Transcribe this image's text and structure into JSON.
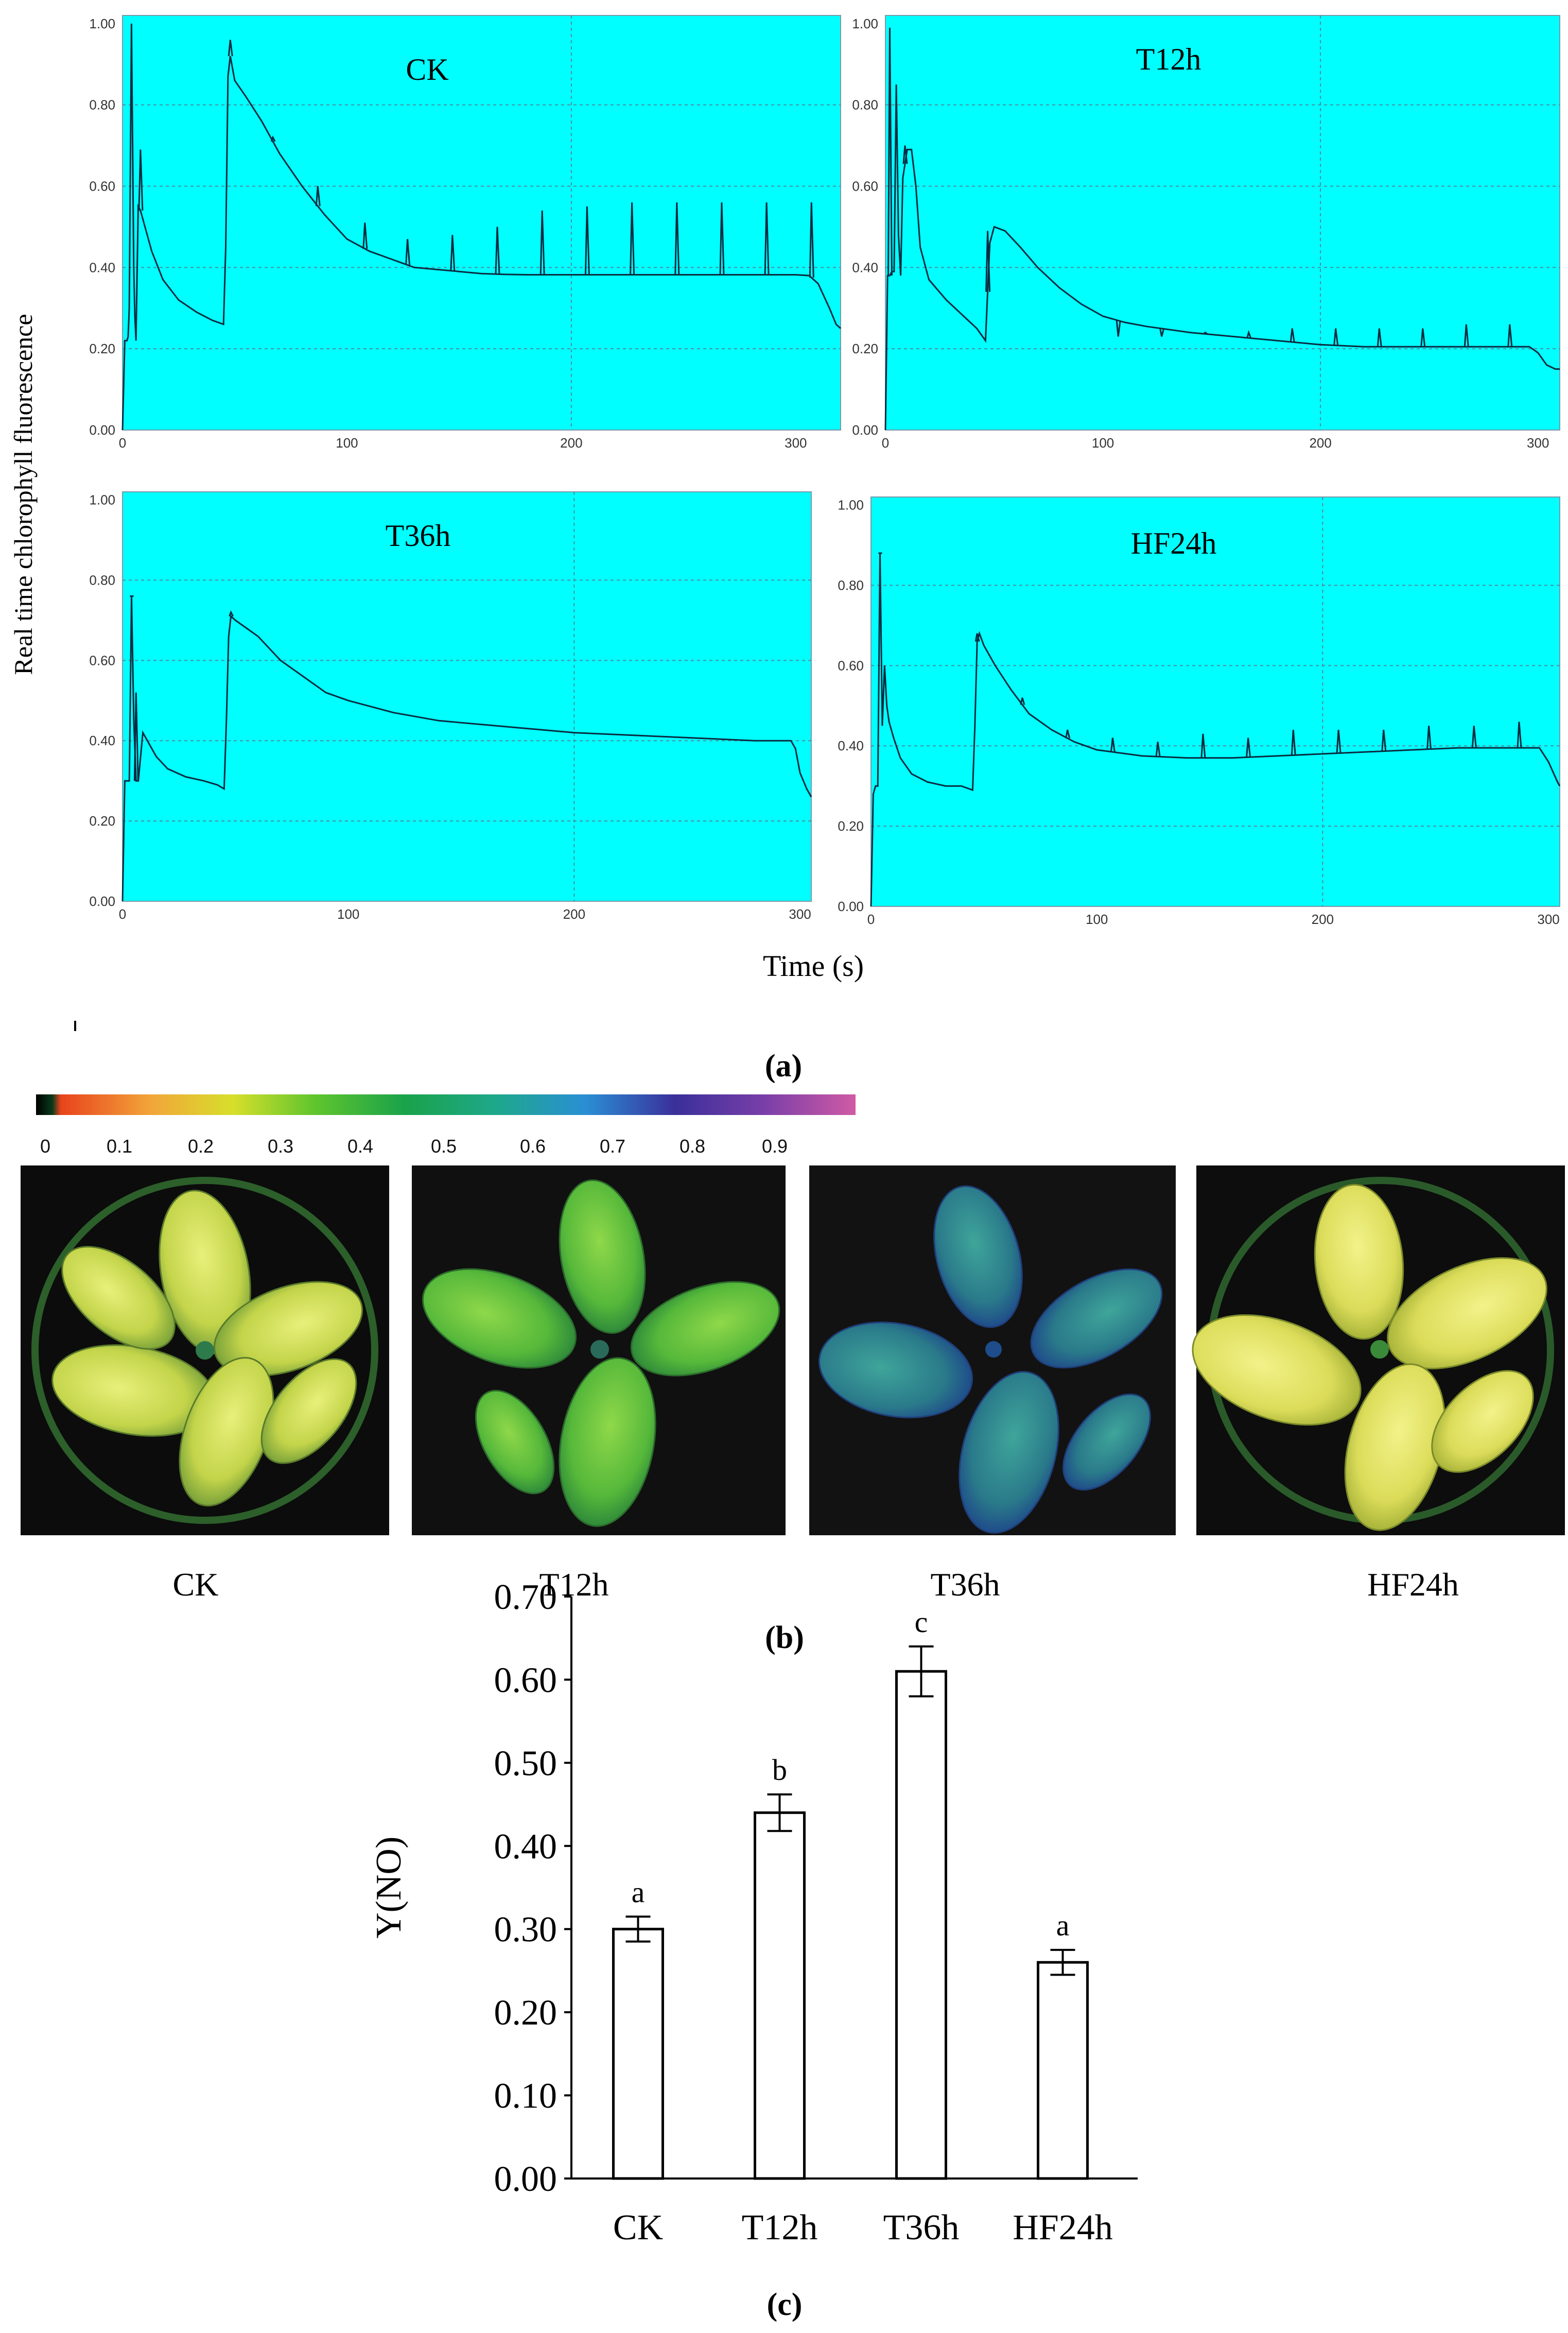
{
  "figure": {
    "ylabel_a": "Real time chlorophyll fluorescence",
    "xlabel_a": "Time (s)",
    "label_a": "(a)",
    "label_b": "(b)",
    "label_c": "(c)",
    "colorbar": {
      "ticks": [
        "0",
        "0.1",
        "0.2",
        "0.3",
        "0.4",
        "0.5",
        "0.6",
        "0.7",
        "0.8",
        "0.9"
      ],
      "colors": [
        "#000000",
        "#e8431c",
        "#f2a53a",
        "#d7df2b",
        "#5fc52d",
        "#1aa24a",
        "#1ea88a",
        "#2a8fd4",
        "#3a2f9a",
        "#7a3fa8",
        "#c858a8"
      ]
    },
    "plant_images": [
      {
        "name": "CK",
        "tone": "bright-yellow-green"
      },
      {
        "name": "T12h",
        "tone": "green"
      },
      {
        "name": "T36h",
        "tone": "blue-green"
      },
      {
        "name": "HF24h",
        "tone": "bright-yellow"
      }
    ],
    "colors": {
      "panel_bg": "#00ffff",
      "trace": "#0a2b40",
      "grid": "#4a8fa0",
      "bar_edge": "#000000"
    }
  },
  "chart_data": [
    {
      "type": "line",
      "title": "CK",
      "yticks": [
        "0.00",
        "0.20",
        "0.40",
        "0.60",
        "0.80",
        "1.00"
      ],
      "xticks": [
        "0",
        "100",
        "200",
        "300"
      ],
      "xlim": [
        0,
        320
      ],
      "ylim": [
        0,
        1.02
      ],
      "x": [
        0,
        1,
        2,
        2.5,
        3,
        4,
        5,
        5.5,
        6,
        7,
        8,
        10,
        13,
        18,
        25,
        33,
        40,
        45,
        46,
        47,
        48,
        50,
        55,
        62,
        70,
        80,
        90,
        100,
        110,
        120,
        130,
        140,
        150,
        160,
        170,
        180,
        200,
        220,
        240,
        260,
        280,
        300,
        306,
        310,
        315,
        318,
        320
      ],
      "y": [
        0.0,
        0.22,
        0.22,
        0.23,
        0.3,
        1.0,
        0.4,
        0.28,
        0.22,
        0.55,
        0.54,
        0.5,
        0.44,
        0.37,
        0.32,
        0.29,
        0.27,
        0.26,
        0.45,
        0.87,
        0.92,
        0.86,
        0.82,
        0.76,
        0.68,
        0.6,
        0.53,
        0.47,
        0.44,
        0.42,
        0.4,
        0.395,
        0.39,
        0.385,
        0.383,
        0.382,
        0.382,
        0.382,
        0.382,
        0.382,
        0.382,
        0.382,
        0.38,
        0.36,
        0.3,
        0.26,
        0.25
      ],
      "spikes": [
        [
          8,
          0.69
        ],
        [
          48,
          0.96
        ],
        [
          67,
          0.72
        ],
        [
          87,
          0.6
        ],
        [
          108,
          0.51
        ],
        [
          127,
          0.47
        ],
        [
          147,
          0.48
        ],
        [
          167,
          0.5
        ],
        [
          187,
          0.54
        ],
        [
          207,
          0.55
        ],
        [
          227,
          0.56
        ],
        [
          247,
          0.56
        ],
        [
          267,
          0.56
        ],
        [
          287,
          0.56
        ],
        [
          307,
          0.56
        ]
      ]
    },
    {
      "type": "line",
      "title": "T12h",
      "yticks": [
        "0.00",
        "0.20",
        "0.40",
        "0.60",
        "0.80",
        "1.00"
      ],
      "xticks": [
        "0",
        "100",
        "200",
        "300"
      ],
      "xlim": [
        0,
        310
      ],
      "ylim": [
        0,
        1.02
      ],
      "x": [
        0,
        1,
        2,
        3,
        4,
        5,
        6,
        7,
        8,
        10,
        12,
        14,
        16,
        20,
        28,
        36,
        42,
        46,
        47,
        48,
        50,
        55,
        62,
        70,
        80,
        90,
        100,
        110,
        120,
        140,
        160,
        180,
        200,
        220,
        240,
        260,
        280,
        296,
        300,
        304,
        308,
        310
      ],
      "y": [
        0.0,
        0.38,
        0.38,
        0.39,
        0.39,
        0.85,
        0.48,
        0.38,
        0.62,
        0.69,
        0.69,
        0.6,
        0.45,
        0.37,
        0.32,
        0.28,
        0.25,
        0.22,
        0.34,
        0.46,
        0.5,
        0.49,
        0.45,
        0.4,
        0.35,
        0.31,
        0.28,
        0.265,
        0.255,
        0.24,
        0.23,
        0.22,
        0.21,
        0.205,
        0.205,
        0.205,
        0.205,
        0.205,
        0.19,
        0.16,
        0.15,
        0.15
      ],
      "spikes": [
        [
          2,
          0.99
        ],
        [
          9,
          0.7
        ],
        [
          47,
          0.49
        ],
        [
          107,
          0.23
        ],
        [
          127,
          0.23
        ],
        [
          147,
          0.24
        ],
        [
          167,
          0.24
        ],
        [
          187,
          0.25
        ],
        [
          207,
          0.25
        ],
        [
          227,
          0.25
        ],
        [
          247,
          0.25
        ],
        [
          267,
          0.26
        ],
        [
          287,
          0.26
        ]
      ]
    },
    {
      "type": "line",
      "title": "T36h",
      "yticks": [
        "0.00",
        "0.20",
        "0.40",
        "0.60",
        "0.80",
        "1.00"
      ],
      "xticks": [
        "0",
        "100",
        "200",
        "300"
      ],
      "xlim": [
        0,
        305
      ],
      "ylim": [
        0,
        1.02
      ],
      "x": [
        0,
        1,
        2,
        3,
        4,
        5,
        6,
        7,
        8,
        9,
        10,
        12,
        15,
        20,
        28,
        36,
        42,
        45,
        46,
        47,
        48,
        50,
        55,
        60,
        70,
        80,
        90,
        100,
        120,
        140,
        160,
        180,
        200,
        220,
        240,
        260,
        280,
        296,
        298,
        300,
        303,
        305
      ],
      "y": [
        0.0,
        0.3,
        0.3,
        0.3,
        0.76,
        0.45,
        0.3,
        0.3,
        0.36,
        0.42,
        0.41,
        0.39,
        0.36,
        0.33,
        0.31,
        0.3,
        0.29,
        0.28,
        0.45,
        0.66,
        0.71,
        0.7,
        0.68,
        0.66,
        0.6,
        0.56,
        0.52,
        0.5,
        0.47,
        0.45,
        0.44,
        0.43,
        0.42,
        0.415,
        0.41,
        0.405,
        0.4,
        0.4,
        0.38,
        0.32,
        0.28,
        0.26
      ],
      "spikes": [
        [
          4,
          0.76
        ],
        [
          6,
          0.52
        ],
        [
          48,
          0.72
        ]
      ]
    },
    {
      "type": "line",
      "title": "HF24h",
      "yticks": [
        "0.00",
        "0.20",
        "0.40",
        "0.60",
        "0.80",
        "1.00"
      ],
      "xticks": [
        "0",
        "100",
        "200",
        "300"
      ],
      "xlim": [
        0,
        305
      ],
      "ylim": [
        0,
        1.02
      ],
      "x": [
        0,
        1,
        2,
        3,
        4,
        5,
        6,
        7,
        8,
        10,
        13,
        18,
        25,
        33,
        40,
        45,
        46,
        47,
        48,
        50,
        55,
        62,
        70,
        80,
        90,
        100,
        120,
        140,
        160,
        180,
        200,
        220,
        240,
        260,
        280,
        296,
        300,
        304,
        305
      ],
      "y": [
        0.0,
        0.28,
        0.3,
        0.3,
        0.88,
        0.45,
        0.6,
        0.5,
        0.46,
        0.42,
        0.37,
        0.33,
        0.31,
        0.3,
        0.3,
        0.29,
        0.45,
        0.66,
        0.68,
        0.65,
        0.6,
        0.54,
        0.48,
        0.44,
        0.41,
        0.39,
        0.375,
        0.37,
        0.37,
        0.375,
        0.38,
        0.385,
        0.39,
        0.395,
        0.395,
        0.395,
        0.36,
        0.31,
        0.3
      ],
      "spikes": [
        [
          4,
          0.88
        ],
        [
          47,
          0.68
        ],
        [
          67,
          0.52
        ],
        [
          87,
          0.44
        ],
        [
          107,
          0.42
        ],
        [
          127,
          0.41
        ],
        [
          147,
          0.43
        ],
        [
          167,
          0.42
        ],
        [
          187,
          0.44
        ],
        [
          207,
          0.44
        ],
        [
          227,
          0.44
        ],
        [
          247,
          0.45
        ],
        [
          267,
          0.45
        ],
        [
          287,
          0.46
        ]
      ]
    },
    {
      "type": "bar",
      "title": "",
      "xlabel": "",
      "ylabel": "Y(NO)",
      "categories": [
        "CK",
        "T12h",
        "T36h",
        "HF24h"
      ],
      "values": [
        0.3,
        0.44,
        0.61,
        0.26
      ],
      "errors": [
        0.015,
        0.022,
        0.03,
        0.015
      ],
      "letters": [
        "a",
        "b",
        "c",
        "a"
      ],
      "ylim": [
        0,
        0.7
      ],
      "yticks": [
        "0.00",
        "0.10",
        "0.20",
        "0.30",
        "0.40",
        "0.50",
        "0.60",
        "0.70"
      ]
    }
  ]
}
